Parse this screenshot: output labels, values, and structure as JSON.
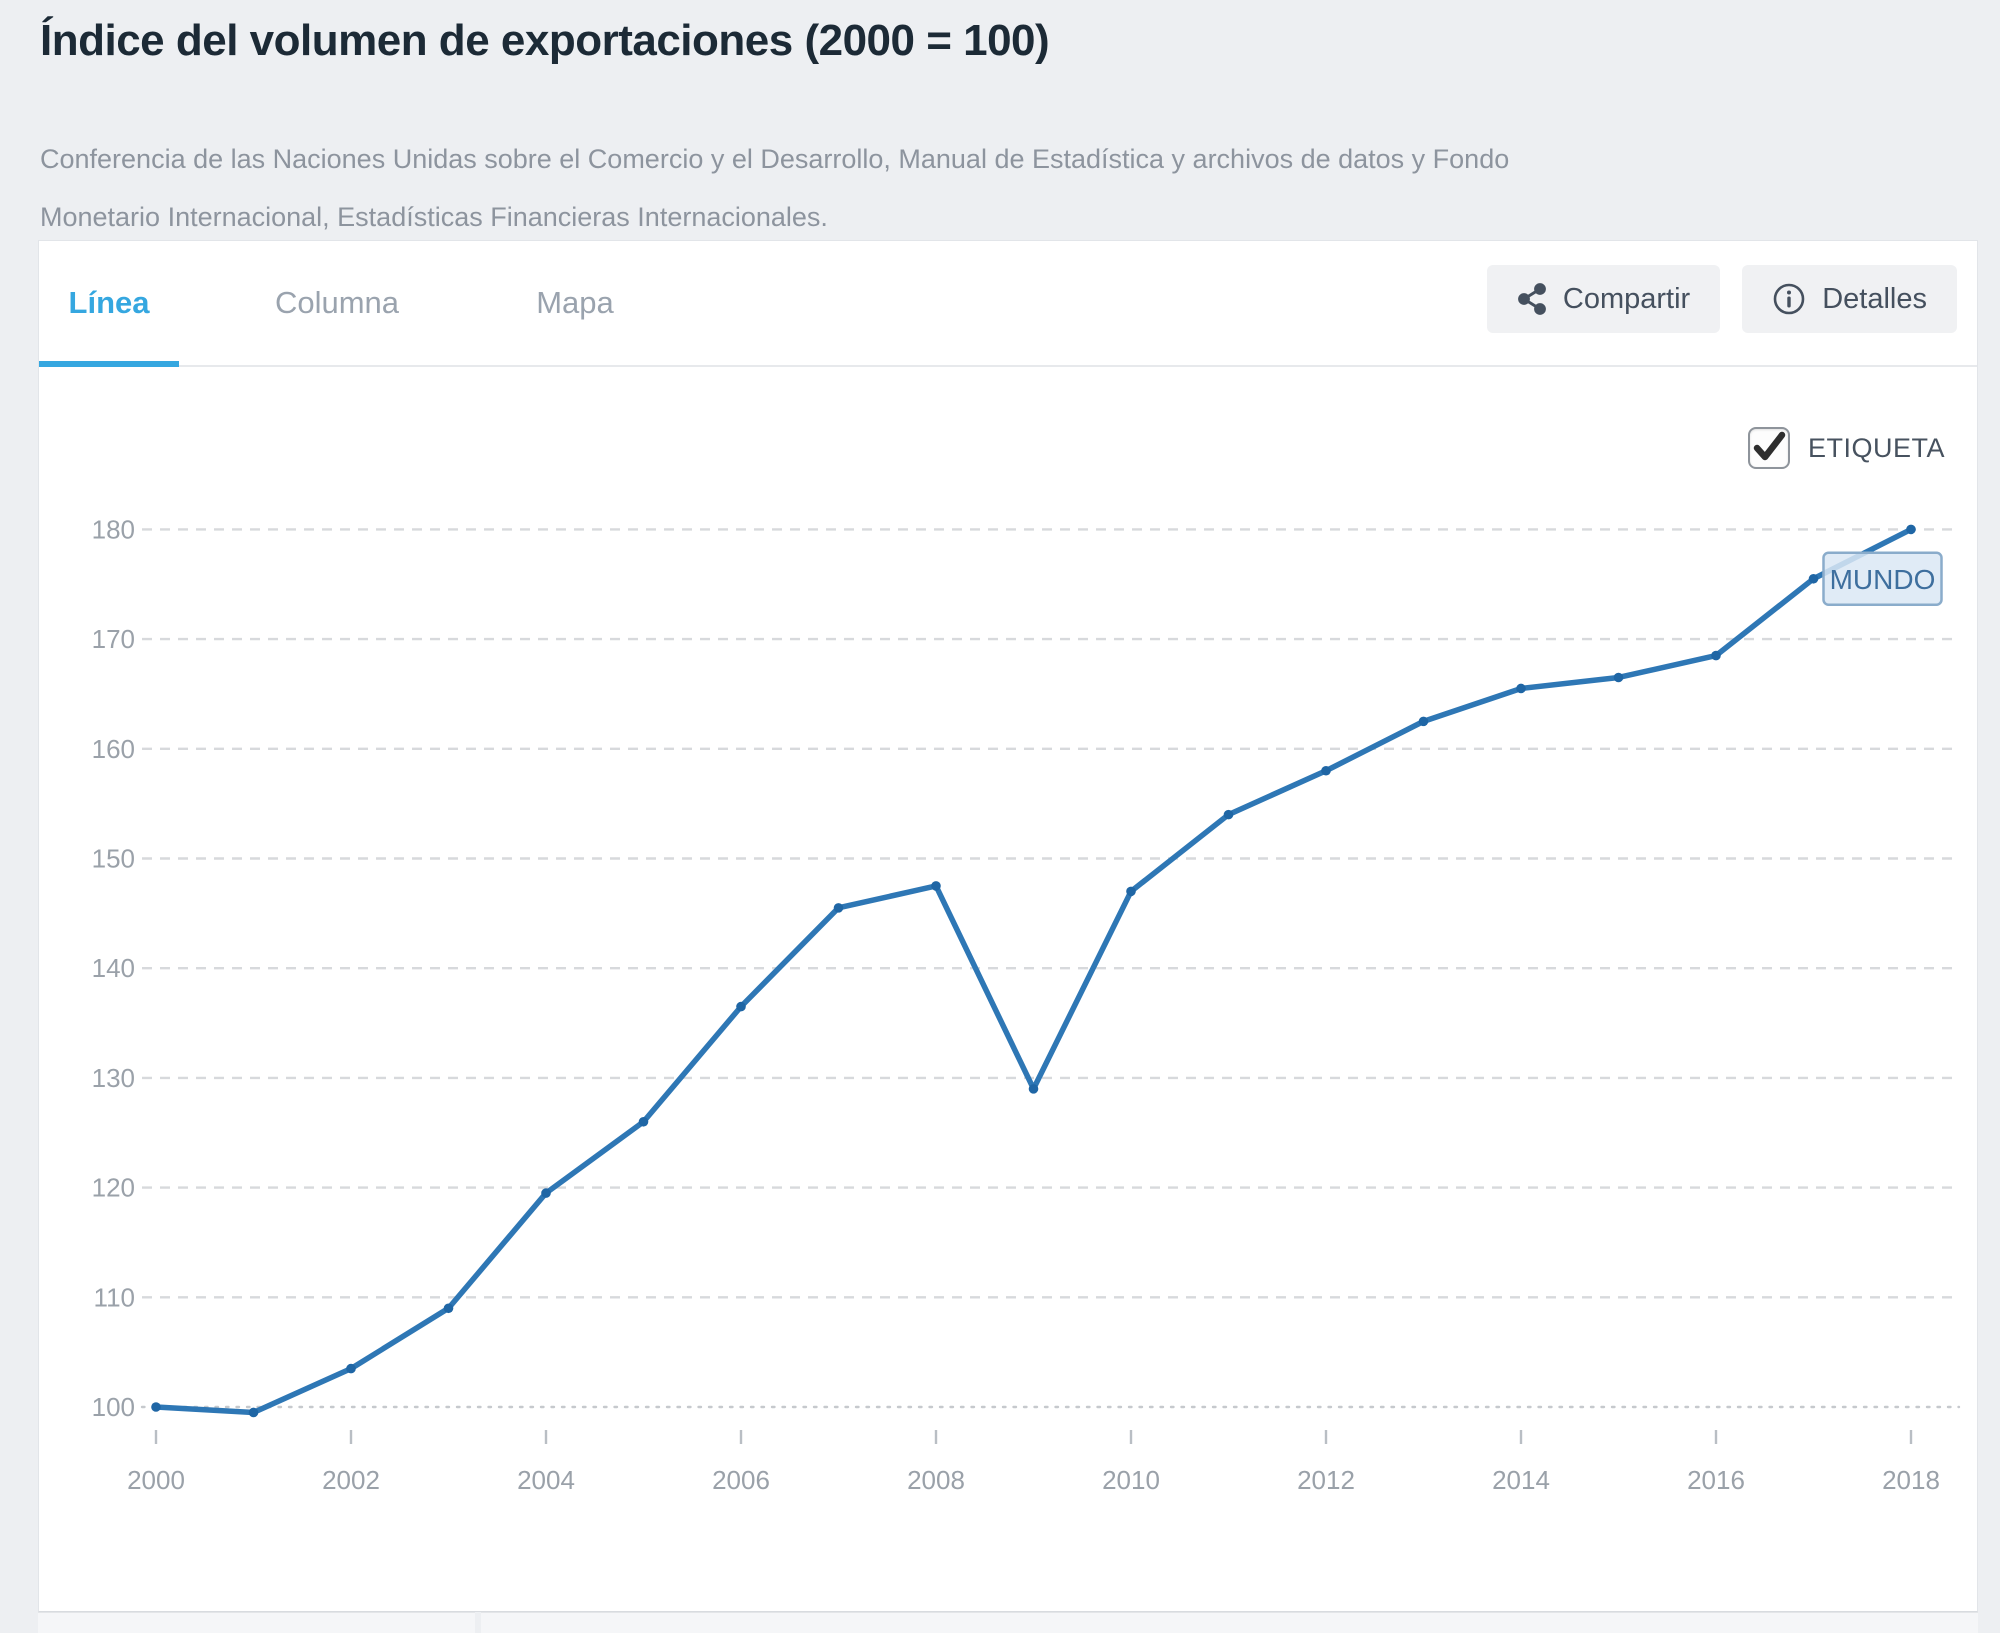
{
  "page": {
    "title": "Índice del volumen de exportaciones (2000 = 100)",
    "subtitle": "Conferencia de las Naciones Unidas sobre el Comercio y el Desarrollo, Manual de Estadística y archivos de datos y Fondo Monetario Internacional, Estadísticas Financieras Internacionales."
  },
  "tabs": [
    {
      "label": "Línea",
      "active": true
    },
    {
      "label": "Columna",
      "active": false
    },
    {
      "label": "Mapa",
      "active": false
    }
  ],
  "actions": {
    "share_label": "Compartir",
    "share_icon": "share-icon",
    "details_label": "Detalles",
    "details_icon": "info-circle-icon"
  },
  "chart_controls": {
    "label_checkbox_text": "ETIQUETA",
    "label_checkbox_checked": true
  },
  "chart_data": {
    "type": "line",
    "title": "Índice del volumen de exportaciones (2000 = 100)",
    "xlabel": "",
    "ylabel": "",
    "x": [
      2000,
      2001,
      2002,
      2003,
      2004,
      2005,
      2006,
      2007,
      2008,
      2009,
      2010,
      2011,
      2012,
      2013,
      2014,
      2015,
      2016,
      2017,
      2018
    ],
    "series": [
      {
        "name": "MUNDO",
        "values": [
          100,
          99.5,
          103.5,
          109,
          119.5,
          126,
          136.5,
          145.5,
          147.5,
          129,
          147,
          154,
          158,
          162.5,
          165.5,
          166.5,
          168.5,
          175.5,
          180
        ]
      }
    ],
    "x_ticks": [
      2000,
      2002,
      2004,
      2006,
      2008,
      2010,
      2012,
      2014,
      2016,
      2018
    ],
    "y_ticks": [
      100,
      110,
      120,
      130,
      140,
      150,
      160,
      170,
      180
    ],
    "ylim": [
      95,
      185
    ],
    "grid": "dashed-horizontal",
    "legend_position": "end-of-line-label",
    "annotation": {
      "text": "MUNDO",
      "year": 2017
    },
    "colors": {
      "line": "#2e77b5",
      "point": "#1f66a5",
      "grid": "#d7d9dc",
      "base_grid": "#c6c9cd",
      "tick_text": "#9aa1a9",
      "annotation_bg": "#dbe8f5",
      "annotation_border": "#8aaccb",
      "annotation_text": "#3e6f9e"
    }
  }
}
